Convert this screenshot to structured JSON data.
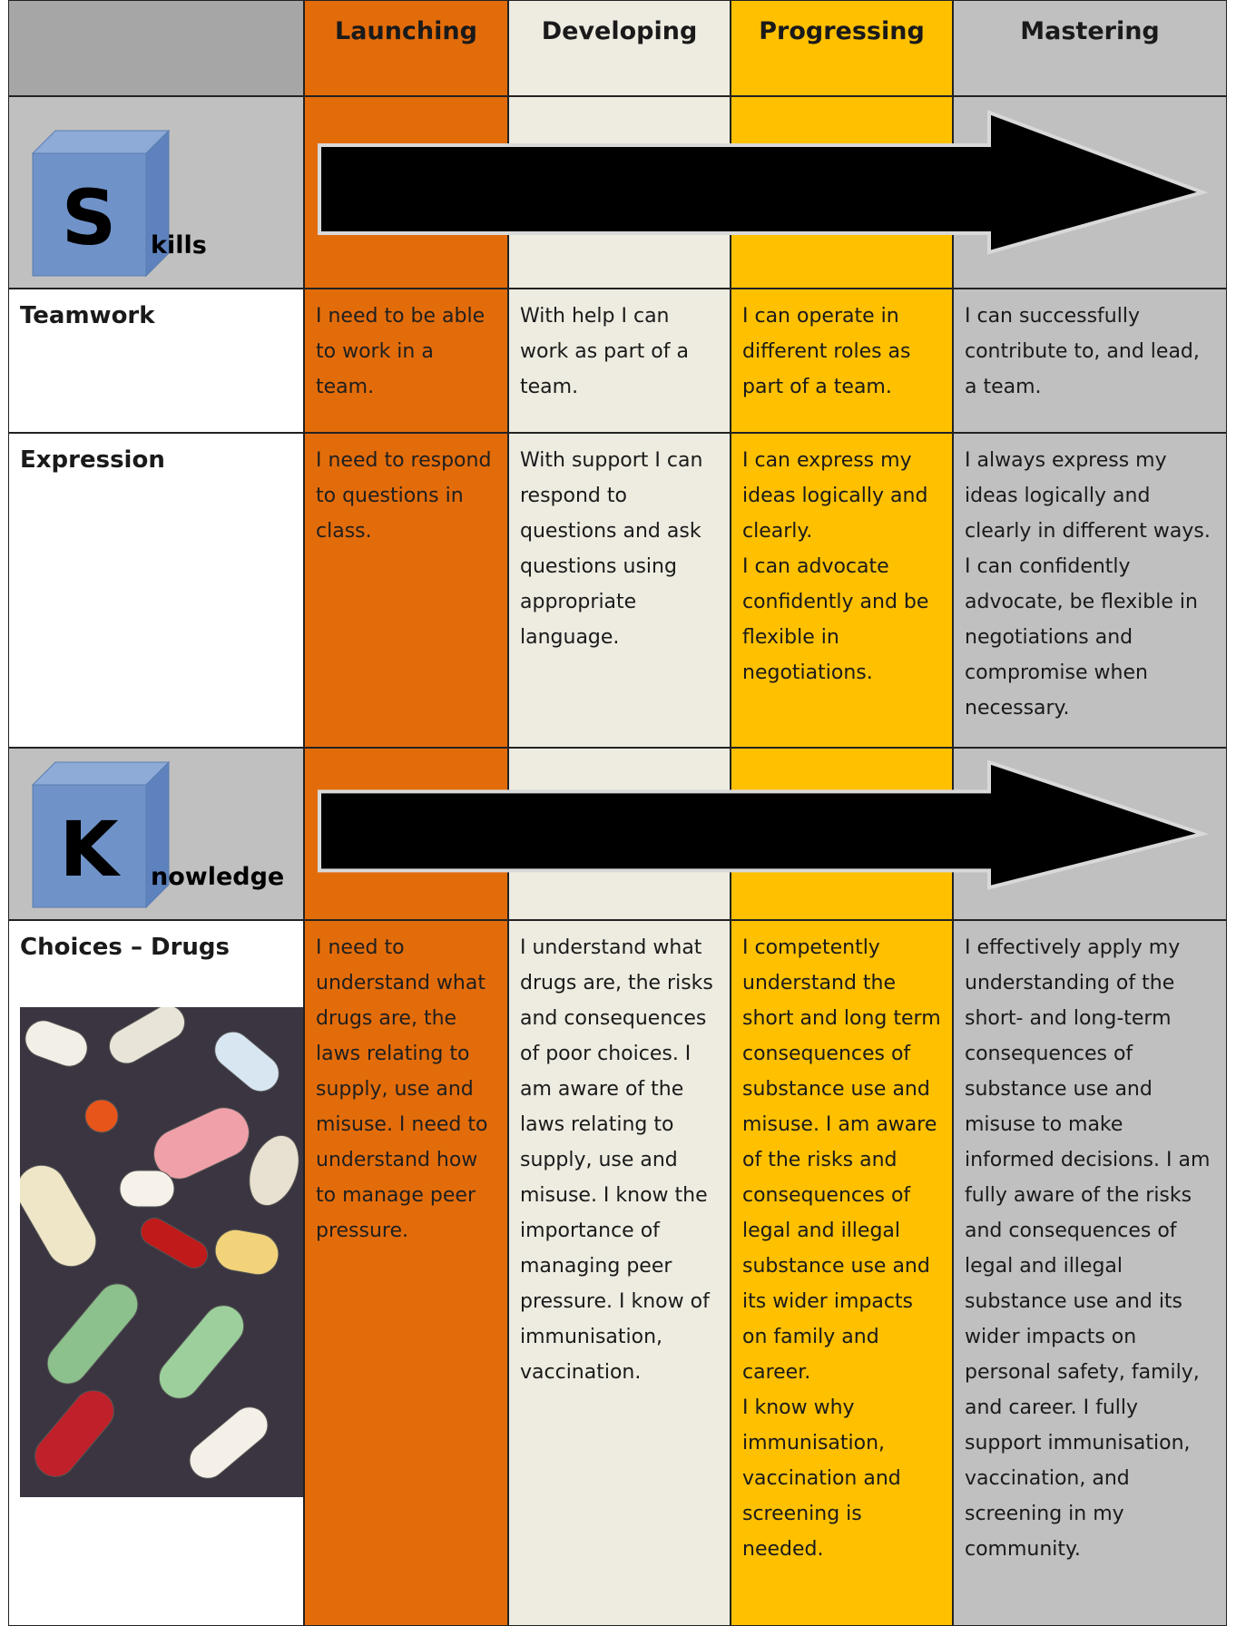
{
  "table": {
    "header": [
      "Launching",
      "Developing",
      "Progressing",
      "Mastering"
    ],
    "sections": [
      {
        "letter": "S",
        "word": "kills",
        "rows": [
          {
            "label": "Teamwork",
            "cells": [
              [
                "I need to be able to work in a team."
              ],
              [
                "With help I can work as part of a team."
              ],
              [
                "I can operate in different roles as part of a team."
              ],
              [
                "I can successfully contribute to, and lead, a team."
              ]
            ]
          },
          {
            "label": "Expression",
            "cells": [
              [
                "I need to respond to questions in class."
              ],
              [
                "With support I can respond to questions and ask questions using appropriate language."
              ],
              [
                "I can express my ideas logically and clearly.",
                "I can advocate confidently and be flexible in negotiations."
              ],
              [
                "I always express my ideas logically and clearly in different ways.",
                "I can confidently advocate, be flexible in negotiations and compromise when necessary."
              ]
            ]
          }
        ]
      },
      {
        "letter": "K",
        "word": "nowledge",
        "rows": [
          {
            "label": "Choices – Drugs",
            "cells": [
              [
                "I need to understand what drugs are, the laws relating to supply, use and misuse. I need to understand how to manage peer pressure."
              ],
              [
                "I understand what drugs are, the risks and consequences of poor choices.  I am aware of the laws relating to supply, use and misuse. I know the importance of managing peer pressure. I know of immunisation, vaccination."
              ],
              [
                "I competently understand the short and long term consequences of substance use and misuse. I am aware of the risks and consequences of legal and illegal substance use and its wider impacts on family and career.",
                "I know why immunisation, vaccination and screening is needed."
              ],
              [
                "I effectively apply my understanding of the short- and long-term consequences of substance use and misuse to make informed decisions. I am fully aware of the risks and consequences of legal and illegal substance use and its wider impacts on personal safety, family, and career. I fully support immunisation, vaccination, and screening in my community."
              ]
            ]
          }
        ]
      }
    ]
  }
}
